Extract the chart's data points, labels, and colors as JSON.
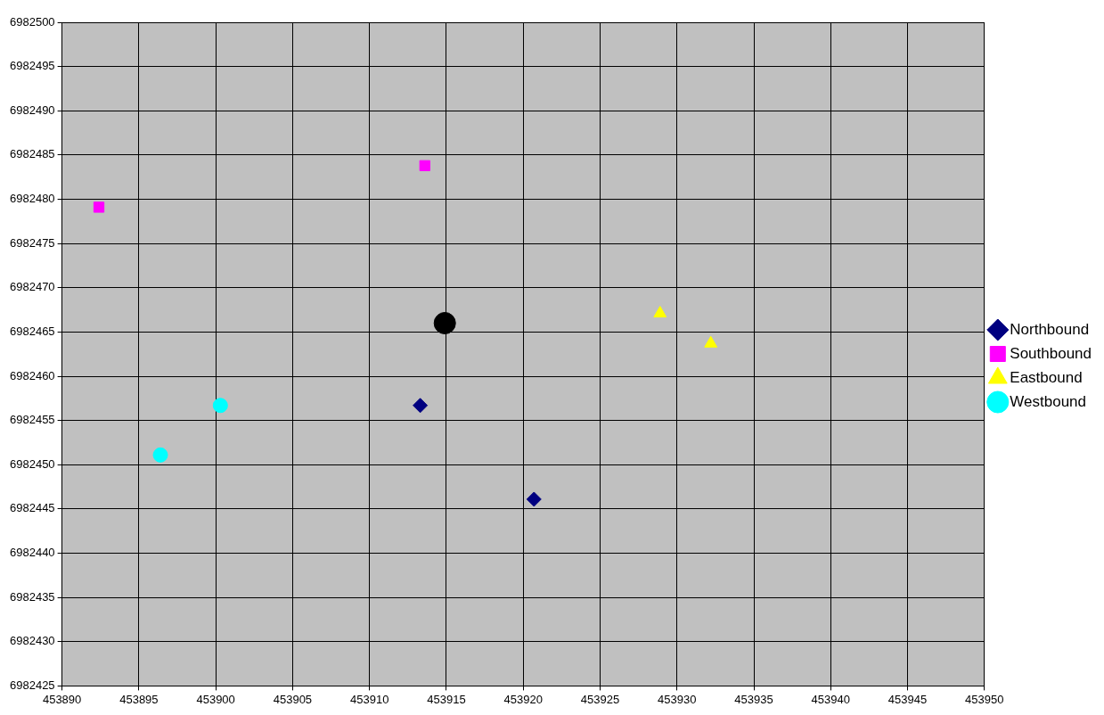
{
  "chart_data": {
    "type": "scatter",
    "xlim": [
      453890,
      453950
    ],
    "xticks": [
      453890,
      453895,
      453900,
      453905,
      453910,
      453915,
      453920,
      453925,
      453930,
      453935,
      453940,
      453945,
      453950
    ],
    "ylim": [
      6982425,
      6982500
    ],
    "yticks": [
      6982425,
      6982430,
      6982435,
      6982440,
      6982445,
      6982450,
      6982455,
      6982460,
      6982465,
      6982470,
      6982475,
      6982480,
      6982485,
      6982490,
      6982495,
      6982500
    ],
    "grid": true,
    "legend": "right",
    "series": [
      {
        "name": "Northbound",
        "color": "#000080",
        "marker": "diamond",
        "x": [
          453913.3,
          453920.7
        ],
        "values": [
          6982456.7,
          6982446.1
        ]
      },
      {
        "name": "Southbound",
        "color": "#ff00ff",
        "marker": "square",
        "x": [
          453892.4,
          453913.6
        ],
        "values": [
          6982479.1,
          6982483.8
        ]
      },
      {
        "name": "Eastbound",
        "color": "#ffff00",
        "marker": "triangle",
        "x": [
          453928.9,
          453932.2
        ],
        "values": [
          6982467.1,
          6982463.7
        ]
      },
      {
        "name": "Westbound",
        "color": "#00ffff",
        "marker": "circle",
        "x": [
          453896.4,
          453900.3
        ],
        "values": [
          6982451.1,
          6982456.7
        ]
      },
      {
        "color": "#000000",
        "marker": "circle",
        "x": [
          453914.9
        ],
        "values": [
          6982466.0
        ]
      }
    ]
  }
}
